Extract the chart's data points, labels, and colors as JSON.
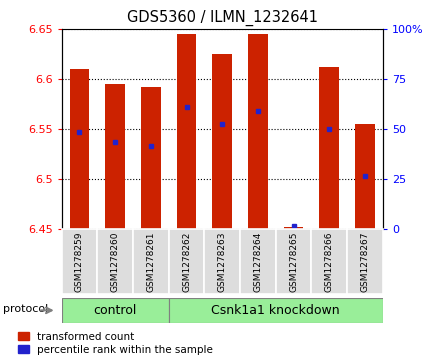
{
  "title": "GDS5360 / ILMN_1232641",
  "samples": [
    "GSM1278259",
    "GSM1278260",
    "GSM1278261",
    "GSM1278262",
    "GSM1278263",
    "GSM1278264",
    "GSM1278265",
    "GSM1278266",
    "GSM1278267"
  ],
  "bar_tops": [
    6.61,
    6.595,
    6.592,
    6.645,
    6.625,
    6.645,
    6.452,
    6.612,
    6.555
  ],
  "bar_bottoms": [
    6.45,
    6.45,
    6.45,
    6.45,
    6.45,
    6.45,
    6.45,
    6.45,
    6.45
  ],
  "blue_positions": [
    6.547,
    6.537,
    6.533,
    6.572,
    6.555,
    6.568,
    6.453,
    6.55,
    6.503
  ],
  "ylim_left": [
    6.45,
    6.65
  ],
  "ylim_right": [
    0,
    100
  ],
  "yticks_left": [
    6.45,
    6.5,
    6.55,
    6.6,
    6.65
  ],
  "yticks_right": [
    0,
    25,
    50,
    75,
    100
  ],
  "bar_color": "#CC2200",
  "blue_color": "#2222CC",
  "ctrl_count": 3,
  "knock_count": 6,
  "control_label": "control",
  "knockdown_label": "Csnk1a1 knockdown",
  "protocol_label": "protocol",
  "legend1": "transformed count",
  "legend2": "percentile rank within the sample",
  "group_bar_color": "#99EE99",
  "sample_bg_color": "#DDDDDD"
}
